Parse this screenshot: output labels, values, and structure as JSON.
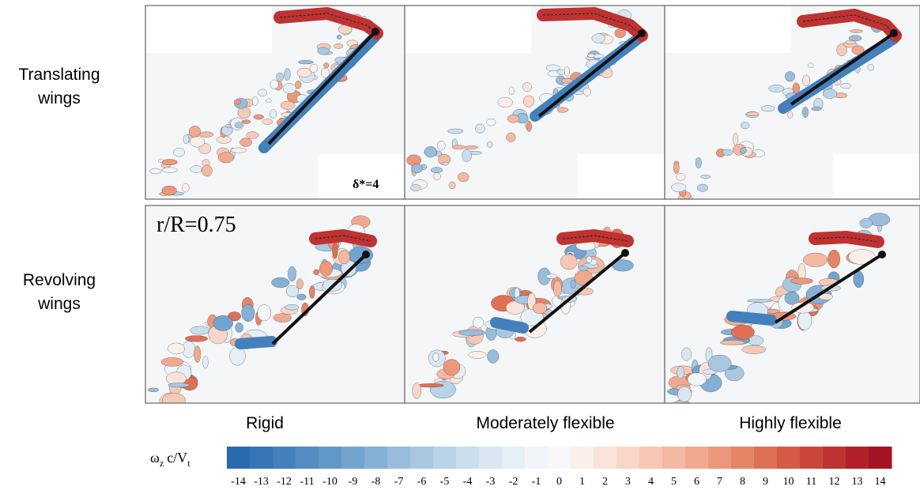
{
  "row_labels": [
    [
      "Translating",
      "wings"
    ],
    [
      "Revolving",
      "wings"
    ]
  ],
  "column_labels": [
    "Rigid",
    "Moderately flexible",
    "Highly flexible"
  ],
  "panel_annotations": {
    "translating_rigid": "δ*=4",
    "revolving_rigid": "r/R=0.75"
  },
  "colorbar": {
    "title": [
      "ω",
      "z",
      "c/V",
      "t"
    ],
    "ticks": [
      -14,
      -13,
      -12,
      -11,
      -10,
      -9,
      -8,
      -7,
      -6,
      -5,
      -4,
      -3,
      -2,
      -1,
      0,
      1,
      2,
      3,
      4,
      5,
      6,
      7,
      8,
      9,
      10,
      11,
      12,
      13,
      14
    ],
    "colors": [
      "#2a6bb0",
      "#3575b6",
      "#4380bc",
      "#528cc2",
      "#6298c8",
      "#73a4cf",
      "#85b0d6",
      "#97bcdc",
      "#a8c8e2",
      "#b9d3e8",
      "#c9deee",
      "#d8e7f2",
      "#e5eff6",
      "#eff5f9",
      "#f7f7f7",
      "#fbefea",
      "#fae3da",
      "#f8d6c8",
      "#f6c8b5",
      "#f3b9a2",
      "#f0a98f",
      "#ec977b",
      "#e68467",
      "#df7055",
      "#d55b47",
      "#ca463b",
      "#be3232",
      "#b2202b",
      "#a51425"
    ]
  }
}
